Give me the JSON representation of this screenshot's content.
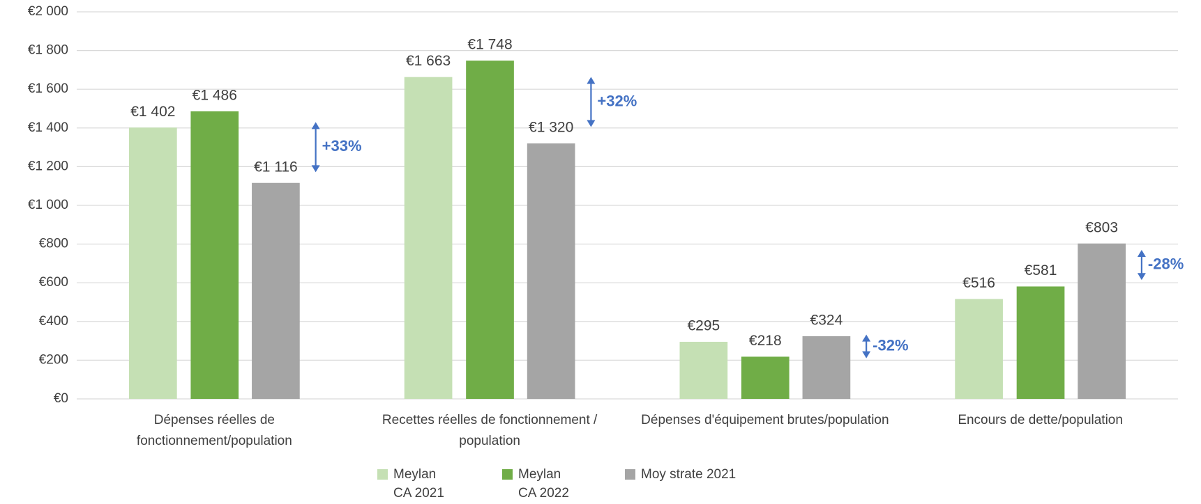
{
  "chart_data": {
    "type": "bar",
    "categories": [
      "Dépenses réelles de fonctionnement/population",
      "Recettes réelles de fonctionnement / population",
      "Dépenses d'équipement brutes/population",
      "Encours de dette/population"
    ],
    "series": [
      {
        "name": "Meylan CA 2021",
        "color": "#c5e0b4",
        "values": [
          1402,
          1663,
          295,
          516
        ],
        "value_labels": [
          "€1 402",
          "€1 663",
          "€295",
          "€516"
        ]
      },
      {
        "name": "Meylan CA 2022",
        "color": "#70ad47",
        "values": [
          1486,
          1748,
          218,
          581
        ],
        "value_labels": [
          "€1 486",
          "€1 748",
          "€218",
          "€581"
        ]
      },
      {
        "name": "Moy strate 2021",
        "color": "#a5a5a5",
        "values": [
          1116,
          1320,
          324,
          803
        ],
        "value_labels": [
          "€1 116",
          "€1 320",
          "€324",
          "€803"
        ]
      }
    ],
    "annotations": [
      "+33%",
      "+32%",
      "-32%",
      "-28%"
    ],
    "annotation_color": "#4472c4",
    "ylim": [
      0,
      2000
    ],
    "yticks": [
      {
        "value": 0,
        "label": "€0"
      },
      {
        "value": 200,
        "label": "€200"
      },
      {
        "value": 400,
        "label": "€400"
      },
      {
        "value": 600,
        "label": "€600"
      },
      {
        "value": 800,
        "label": "€800"
      },
      {
        "value": 1000,
        "label": "€1 000"
      },
      {
        "value": 1200,
        "label": "€1 200"
      },
      {
        "value": 1400,
        "label": "€1 400"
      },
      {
        "value": 1600,
        "label": "€1 600"
      },
      {
        "value": 1800,
        "label": "€1 800"
      },
      {
        "value": 2000,
        "label": "€2 000"
      }
    ],
    "grid": true,
    "legend": "bottom"
  }
}
